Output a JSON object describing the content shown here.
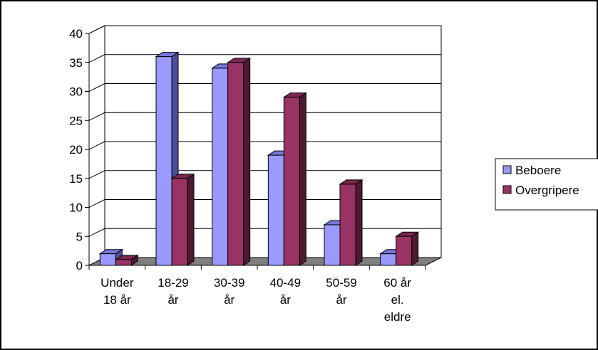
{
  "chart_data": {
    "type": "bar",
    "categories": [
      [
        "Under",
        "18 år"
      ],
      [
        "18-29",
        "år"
      ],
      [
        "30-39",
        "år"
      ],
      [
        "40-49",
        "år"
      ],
      [
        "50-59",
        "år"
      ],
      [
        "60 år",
        "el.",
        "eldre"
      ]
    ],
    "series": [
      {
        "name": "Beboere",
        "values": [
          2,
          36,
          34,
          19,
          7,
          2
        ]
      },
      {
        "name": "Overgripere",
        "values": [
          1,
          15,
          35,
          29,
          14,
          5
        ]
      }
    ],
    "yticks": [
      0,
      5,
      10,
      15,
      20,
      25,
      30,
      35,
      40
    ],
    "ylim": [
      0,
      40
    ],
    "grid": true,
    "legend": "right",
    "colors": {
      "Beboere": {
        "front": "#9999ff",
        "top": "#7777dd",
        "side": "#4d4d99"
      },
      "Overgripere": {
        "front": "#993366",
        "top": "#7a2850",
        "side": "#4d1933"
      },
      "floor": "#808080",
      "wall": "#ffffff",
      "grid": "#000000"
    }
  }
}
